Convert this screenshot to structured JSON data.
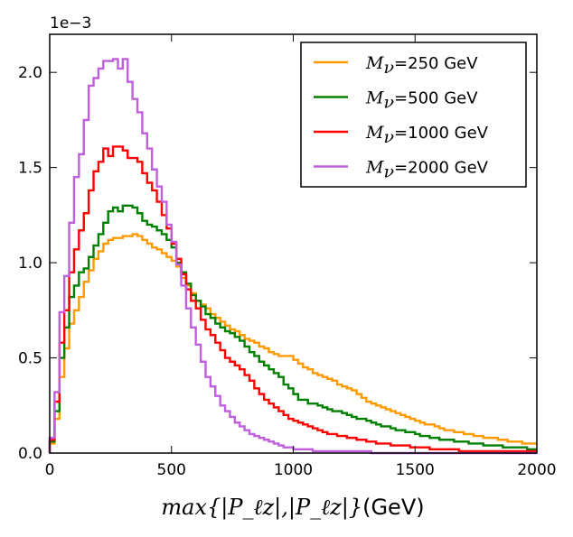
{
  "chart_data": {
    "type": "step-histogram",
    "title": "",
    "xlabel_math": "max{|P_ℓz|,|P_ℓz|}",
    "xlabel_unit": "(GeV)",
    "ylabel": "",
    "offset_label": "1e−3",
    "xlim": [
      0,
      2000
    ],
    "ylim": [
      0,
      2.2
    ],
    "y_scale": 0.001,
    "x_ticks": [
      0,
      500,
      1000,
      1500,
      2000
    ],
    "x_tick_labels": [
      "0",
      "500",
      "1000",
      "1500",
      "2000"
    ],
    "y_ticks": [
      0.0,
      0.5,
      1.0,
      1.5,
      2.0
    ],
    "y_tick_labels": [
      "0.0",
      "0.5",
      "1.0",
      "1.5",
      "2.0"
    ],
    "grid": false,
    "legend_position": "top-right",
    "x_edges": [
      0,
      20,
      40,
      60,
      80,
      100,
      120,
      140,
      160,
      180,
      200,
      220,
      240,
      260,
      280,
      300,
      320,
      340,
      360,
      380,
      400,
      420,
      440,
      460,
      480,
      500,
      520,
      540,
      560,
      580,
      600,
      620,
      640,
      660,
      680,
      700,
      720,
      740,
      760,
      780,
      800,
      820,
      840,
      860,
      880,
      900,
      920,
      940,
      960,
      980,
      1000,
      1020,
      1040,
      1060,
      1080,
      1100,
      1120,
      1140,
      1160,
      1180,
      1200,
      1220,
      1240,
      1260,
      1280,
      1300,
      1320,
      1340,
      1360,
      1380,
      1400,
      1420,
      1440,
      1460,
      1480,
      1500,
      1520,
      1540,
      1560,
      1580,
      1600,
      1620,
      1640,
      1660,
      1680,
      1700,
      1720,
      1740,
      1760,
      1780,
      1800,
      1820,
      1840,
      1860,
      1880,
      1900,
      1920,
      1940,
      1960,
      1980,
      2000
    ],
    "series": [
      {
        "name": "250 GeV",
        "legend_math": "M",
        "legend_sub": "ν",
        "legend_suffix": "=250 GeV",
        "color": "#ff9900",
        "values": [
          0.05,
          0.18,
          0.4,
          0.55,
          0.68,
          0.75,
          0.82,
          0.9,
          0.96,
          1.02,
          1.06,
          1.1,
          1.12,
          1.13,
          1.13,
          1.14,
          1.14,
          1.15,
          1.14,
          1.12,
          1.1,
          1.08,
          1.07,
          1.05,
          1.03,
          1.01,
          0.98,
          0.92,
          0.88,
          0.84,
          0.8,
          0.78,
          0.76,
          0.73,
          0.71,
          0.69,
          0.67,
          0.65,
          0.64,
          0.62,
          0.6,
          0.59,
          0.58,
          0.56,
          0.55,
          0.53,
          0.52,
          0.51,
          0.51,
          0.51,
          0.49,
          0.47,
          0.45,
          0.44,
          0.42,
          0.41,
          0.4,
          0.39,
          0.38,
          0.36,
          0.35,
          0.34,
          0.33,
          0.31,
          0.29,
          0.27,
          0.26,
          0.25,
          0.24,
          0.23,
          0.22,
          0.21,
          0.2,
          0.19,
          0.18,
          0.17,
          0.16,
          0.15,
          0.15,
          0.14,
          0.13,
          0.12,
          0.12,
          0.11,
          0.11,
          0.1,
          0.1,
          0.09,
          0.09,
          0.08,
          0.08,
          0.08,
          0.07,
          0.07,
          0.06,
          0.06,
          0.06,
          0.05,
          0.05,
          0.05
        ]
      },
      {
        "name": "500 GeV",
        "legend_math": "M",
        "legend_sub": "ν",
        "legend_suffix": "=500 GeV",
        "color": "#008000",
        "values": [
          0.06,
          0.22,
          0.5,
          0.66,
          0.82,
          0.88,
          0.95,
          0.97,
          1.03,
          1.09,
          1.15,
          1.21,
          1.27,
          1.29,
          1.27,
          1.3,
          1.3,
          1.29,
          1.26,
          1.22,
          1.2,
          1.19,
          1.17,
          1.15,
          1.12,
          1.08,
          1.0,
          0.95,
          0.89,
          0.83,
          0.8,
          0.77,
          0.73,
          0.71,
          0.68,
          0.66,
          0.64,
          0.63,
          0.61,
          0.59,
          0.56,
          0.53,
          0.51,
          0.48,
          0.46,
          0.44,
          0.42,
          0.4,
          0.36,
          0.34,
          0.31,
          0.28,
          0.28,
          0.26,
          0.26,
          0.25,
          0.24,
          0.23,
          0.22,
          0.22,
          0.21,
          0.2,
          0.19,
          0.18,
          0.18,
          0.17,
          0.16,
          0.15,
          0.14,
          0.14,
          0.13,
          0.12,
          0.12,
          0.11,
          0.11,
          0.1,
          0.09,
          0.09,
          0.08,
          0.08,
          0.07,
          0.07,
          0.07,
          0.06,
          0.06,
          0.06,
          0.05,
          0.05,
          0.05,
          0.04,
          0.04,
          0.04,
          0.04,
          0.03,
          0.03,
          0.03,
          0.03,
          0.03,
          0.02,
          0.02
        ]
      },
      {
        "name": "1000 GeV",
        "legend_math": "M",
        "legend_sub": "ν",
        "legend_suffix": "=1000 GeV",
        "color": "#ff0000",
        "values": [
          0.07,
          0.27,
          0.58,
          0.75,
          0.95,
          1.07,
          1.17,
          1.26,
          1.38,
          1.48,
          1.53,
          1.6,
          1.56,
          1.61,
          1.61,
          1.59,
          1.55,
          1.55,
          1.53,
          1.47,
          1.42,
          1.38,
          1.32,
          1.25,
          1.18,
          1.1,
          1.02,
          0.94,
          0.86,
          0.8,
          0.76,
          0.7,
          0.65,
          0.62,
          0.58,
          0.54,
          0.5,
          0.48,
          0.46,
          0.44,
          0.41,
          0.38,
          0.34,
          0.31,
          0.28,
          0.26,
          0.24,
          0.22,
          0.2,
          0.18,
          0.17,
          0.16,
          0.15,
          0.14,
          0.13,
          0.12,
          0.11,
          0.1,
          0.1,
          0.09,
          0.09,
          0.08,
          0.08,
          0.07,
          0.07,
          0.06,
          0.06,
          0.05,
          0.05,
          0.05,
          0.04,
          0.04,
          0.04,
          0.04,
          0.03,
          0.03,
          0.03,
          0.03,
          0.02,
          0.02,
          0.02,
          0.02,
          0.02,
          0.02,
          0.01,
          0.01,
          0.01,
          0.01,
          0.01,
          0.01,
          0.01,
          0.01,
          0.01,
          0.01,
          0.01,
          0.01,
          0.01,
          0.01,
          0.01,
          0.01
        ]
      },
      {
        "name": "2000 GeV",
        "legend_math": "M",
        "legend_sub": "ν",
        "legend_suffix": "=2000 GeV",
        "color": "#bf5fdc",
        "values": [
          0.08,
          0.32,
          0.74,
          0.93,
          1.21,
          1.45,
          1.57,
          1.75,
          1.93,
          1.97,
          2.02,
          2.06,
          2.06,
          2.07,
          2.02,
          2.07,
          1.95,
          1.86,
          1.79,
          1.68,
          1.6,
          1.49,
          1.4,
          1.32,
          1.2,
          1.11,
          0.99,
          0.88,
          0.76,
          0.66,
          0.57,
          0.48,
          0.4,
          0.35,
          0.3,
          0.25,
          0.22,
          0.19,
          0.16,
          0.14,
          0.12,
          0.1,
          0.09,
          0.08,
          0.07,
          0.06,
          0.05,
          0.04,
          0.03,
          0.03,
          0.02,
          0.02,
          0.02,
          0.02,
          0.01,
          0.01,
          0.01,
          0.01,
          0.01,
          0.01,
          0.01,
          0.01,
          0.01,
          0.01,
          0.01,
          0.01,
          0.0,
          0.0,
          0.0,
          0.0,
          0.0,
          0.0,
          0.0,
          0.0,
          0.0,
          0.0,
          0.0,
          0.0,
          0.0,
          0.0,
          0.0,
          0.0,
          0.0,
          0.0,
          0.0,
          0.0,
          0.0,
          0.0,
          0.0,
          0.0,
          0.0,
          0.0,
          0.0,
          0.0,
          0.0,
          0.0,
          0.0,
          0.0,
          0.0,
          0.0
        ]
      }
    ]
  }
}
